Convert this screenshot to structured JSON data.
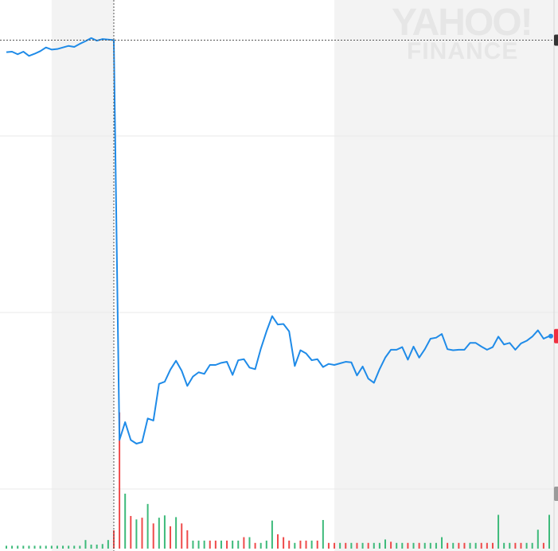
{
  "watermark": {
    "line1": "YAHOO!",
    "line2": "FINANCE"
  },
  "colors": {
    "price_line": "#1f8be8",
    "volume_up": "#3dba7a",
    "volume_down": "#ef4a4a",
    "shade": "#f3f3f3",
    "grid": "#e8e8e8",
    "crosshair": "#555555",
    "right_axis": "#d6d6d6",
    "marker_current": "#ef2f3f",
    "marker_dot": "#1f8be8",
    "marker_top": "#333333",
    "marker_vol": "#9a9a9a"
  },
  "chart_data": {
    "type": "line",
    "title": "",
    "xlabel": "",
    "ylabel": "",
    "ylim": [
      0,
      100
    ],
    "grid": true,
    "legend": "none",
    "crosshair_index": 19,
    "shaded_ranges": [
      [
        8,
        19
      ],
      [
        58,
        103
      ]
    ],
    "series": [
      {
        "values": [
          94.6,
          94.7,
          94.2,
          94.7,
          93.9,
          94.3,
          94.8,
          95.5,
          95.1,
          95.2,
          95.5,
          95.8,
          95.6,
          96.2,
          96.7,
          97.3,
          96.8,
          97.1,
          97.0,
          96.9,
          20.7,
          24.1,
          20.7,
          20.0,
          20.3,
          24.8,
          24.4,
          31.4,
          31.8,
          34.1,
          35.8,
          33.9,
          31.0,
          32.8,
          33.6,
          33.3,
          35.0,
          35.0,
          35.4,
          35.6,
          33.1,
          35.9,
          36.1,
          34.5,
          34.2,
          38.1,
          41.4,
          44.3,
          42.7,
          42.8,
          41.4,
          34.8,
          37.8,
          37.2,
          35.9,
          36.1,
          34.6,
          35.2,
          35.0,
          35.3,
          35.6,
          35.5,
          33.0,
          34.7,
          32.4,
          31.6,
          34.2,
          36.4,
          37.9,
          37.9,
          38.4,
          36.0,
          38.5,
          36.4,
          38.0,
          40.0,
          40.2,
          40.9,
          38.0,
          37.8,
          37.9,
          37.9,
          39.2,
          39.2,
          38.5,
          37.9,
          38.4,
          40.4,
          38.9,
          39.2,
          37.9,
          39.1,
          39.6,
          40.4,
          41.6,
          40.0,
          40.5
        ],
        "volumes": [
          0.5,
          0.5,
          0.5,
          0.5,
          0.5,
          0.5,
          0.5,
          0.5,
          0.5,
          0.5,
          0.5,
          0.5,
          0.5,
          0.5,
          1.5,
          0.7,
          0.7,
          0.8,
          1.5,
          3.2,
          23.8,
          9.6,
          5.7,
          5.1,
          5.4,
          7.8,
          4.4,
          5.4,
          5.8,
          3.9,
          5.5,
          4.4,
          3.2,
          1.4,
          1.4,
          1.4,
          1.4,
          1.4,
          1.4,
          1.4,
          1.4,
          1.4,
          2.0,
          2.0,
          1.0,
          1.0,
          1.4,
          4.9,
          2.5,
          2.0,
          1.4,
          1.0,
          1.4,
          1.4,
          1.4,
          1.4,
          5.0,
          1.0,
          1.0,
          1.0,
          1.0,
          1.0,
          1.0,
          1.0,
          1.0,
          1.0,
          1.0,
          1.6,
          1.2,
          1.0,
          1.0,
          1.0,
          1.0,
          1.0,
          1.0,
          1.0,
          1.0,
          2.0,
          1.0,
          1.0,
          1.0,
          1.0,
          1.0,
          1.0,
          1.0,
          1.0,
          1.0,
          5.9,
          1.0,
          1.0,
          1.0,
          1.0,
          1.0,
          1.0,
          3.3,
          1.0,
          5.9
        ],
        "volume_up": [
          true,
          true,
          true,
          true,
          true,
          true,
          true,
          true,
          true,
          true,
          true,
          true,
          true,
          true,
          true,
          true,
          true,
          true,
          true,
          false,
          false,
          true,
          false,
          true,
          false,
          true,
          false,
          true,
          true,
          false,
          true,
          false,
          false,
          true,
          true,
          true,
          false,
          false,
          true,
          false,
          true,
          true,
          false,
          true,
          false,
          true,
          true,
          true,
          false,
          false,
          false,
          true,
          false,
          false,
          true,
          false,
          true,
          false,
          false,
          true,
          false,
          true,
          false,
          true,
          false,
          true,
          true,
          true,
          false,
          true,
          true,
          false,
          true,
          false,
          true,
          true,
          true,
          true,
          false,
          true,
          false,
          false,
          true,
          true,
          false,
          false,
          false,
          true,
          true,
          true,
          false,
          false,
          true,
          true,
          true,
          false,
          true
        ]
      }
    ]
  }
}
